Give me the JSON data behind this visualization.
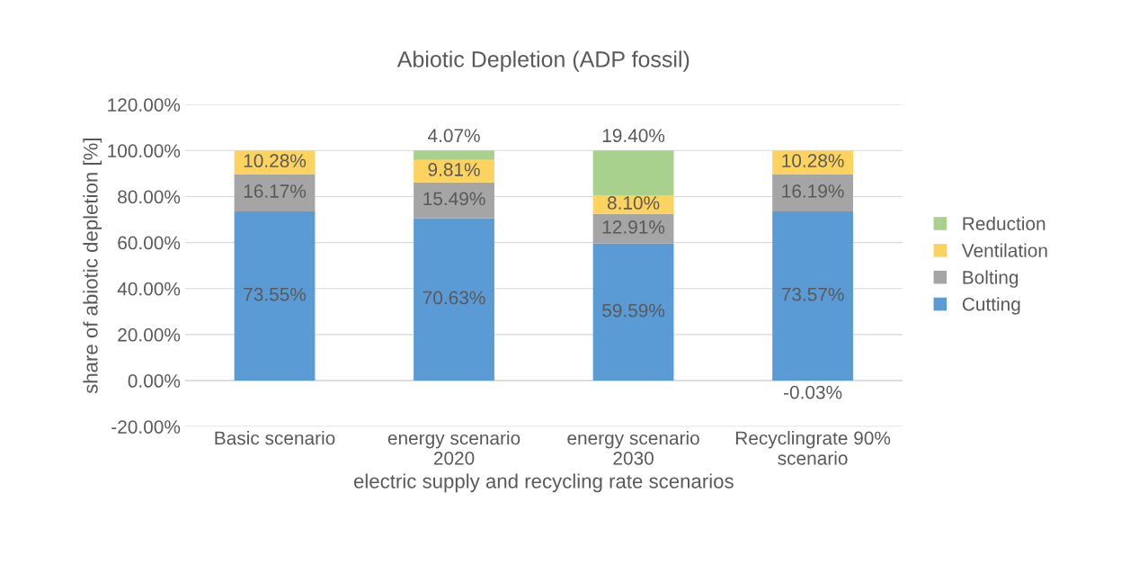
{
  "chart_data": {
    "type": "bar",
    "stacked": true,
    "title": "Abiotic Depletion (ADP fossil)",
    "xlabel": "electric supply and recycling rate scenarios",
    "ylabel": "share of abiotic depletion [%]",
    "categories": [
      "Basic scenario",
      "energy scenario\n2020",
      "energy scenario\n2030",
      "Recyclingrate 90%\nscenario"
    ],
    "series": [
      {
        "name": "Cutting",
        "color": "#5b9bd5",
        "values": [
          73.55,
          70.63,
          59.59,
          73.57
        ],
        "value_labels": [
          "73.55%",
          "70.63%",
          "59.59%",
          "73.57%"
        ]
      },
      {
        "name": "Bolting",
        "color": "#a5a5a5",
        "values": [
          16.17,
          15.49,
          12.91,
          16.19
        ],
        "value_labels": [
          "16.17%",
          "15.49%",
          "12.91%",
          "16.19%"
        ]
      },
      {
        "name": "Ventilation",
        "color": "#fdd35f",
        "values": [
          10.28,
          9.81,
          8.1,
          10.28
        ],
        "value_labels": [
          "10.28%",
          "9.81%",
          "8.10%",
          "10.28%"
        ]
      },
      {
        "name": "Reduction",
        "color": "#a9d18e",
        "values": [
          null,
          4.07,
          19.4,
          -0.03
        ],
        "value_labels": [
          null,
          "4.07%",
          "19.40%",
          "-0.03%"
        ]
      }
    ],
    "ylim": [
      -20,
      120
    ],
    "yticks": [
      {
        "value": -20,
        "label": "-20.00%"
      },
      {
        "value": 0,
        "label": "0.00%"
      },
      {
        "value": 20,
        "label": "20.00%"
      },
      {
        "value": 40,
        "label": "40.00%"
      },
      {
        "value": 60,
        "label": "60.00%"
      },
      {
        "value": 80,
        "label": "80.00%"
      },
      {
        "value": 100,
        "label": "100.00%"
      },
      {
        "value": 120,
        "label": "120.00%"
      }
    ],
    "grid": "y",
    "legend": "right"
  }
}
